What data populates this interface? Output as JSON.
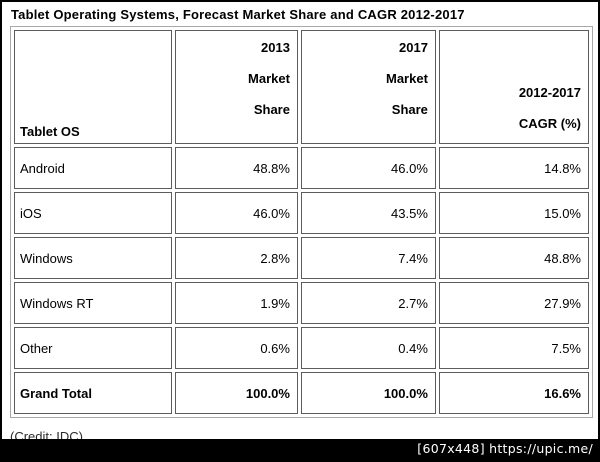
{
  "title": "Tablet Operating Systems, Forecast Market Share and CAGR 2012-2017",
  "table": {
    "headers": {
      "os": "Tablet OS",
      "share2013": "2013\nMarket\nShare",
      "share2017": "2017\nMarket\nShare",
      "cagr": "2012-2017\nCAGR (%)"
    },
    "rows": [
      {
        "os": "Android",
        "share2013": "48.8%",
        "share2017": "46.0%",
        "cagr": "14.8%"
      },
      {
        "os": "iOS",
        "share2013": "46.0%",
        "share2017": "43.5%",
        "cagr": "15.0%"
      },
      {
        "os": "Windows",
        "share2013": "2.8%",
        "share2017": "7.4%",
        "cagr": "48.8%"
      },
      {
        "os": "Windows RT",
        "share2013": "1.9%",
        "share2017": "2.7%",
        "cagr": "27.9%"
      },
      {
        "os": "Other",
        "share2013": "0.6%",
        "share2017": "0.4%",
        "cagr": "7.5%"
      }
    ],
    "total_row": {
      "os": "Grand Total",
      "share2013": "100.0%",
      "share2017": "100.0%",
      "cagr": "16.6%"
    }
  },
  "credit": "(Credit: IDC)",
  "watermark": "[607x448] https://upic.me/",
  "colors": {
    "frame": "#000000",
    "table_outer_border": "#a8a8a8",
    "cell_border": "#5c5c5c",
    "watermark_bg": "#000000",
    "watermark_text": "#ffffff"
  },
  "chart_data": {
    "type": "table",
    "title": "Tablet Operating Systems, Forecast Market Share and CAGR 2012-2017",
    "columns": [
      "Tablet OS",
      "2013 Market Share",
      "2017 Market Share",
      "2012-2017 CAGR (%)"
    ],
    "rows": [
      [
        "Android",
        48.8,
        46.0,
        14.8
      ],
      [
        "iOS",
        46.0,
        43.5,
        15.0
      ],
      [
        "Windows",
        2.8,
        7.4,
        48.8
      ],
      [
        "Windows RT",
        1.9,
        2.7,
        27.9
      ],
      [
        "Other",
        0.6,
        0.4,
        7.5
      ],
      [
        "Grand Total",
        100.0,
        100.0,
        16.6
      ]
    ],
    "units": "%",
    "source_note": "(Credit: IDC)"
  }
}
